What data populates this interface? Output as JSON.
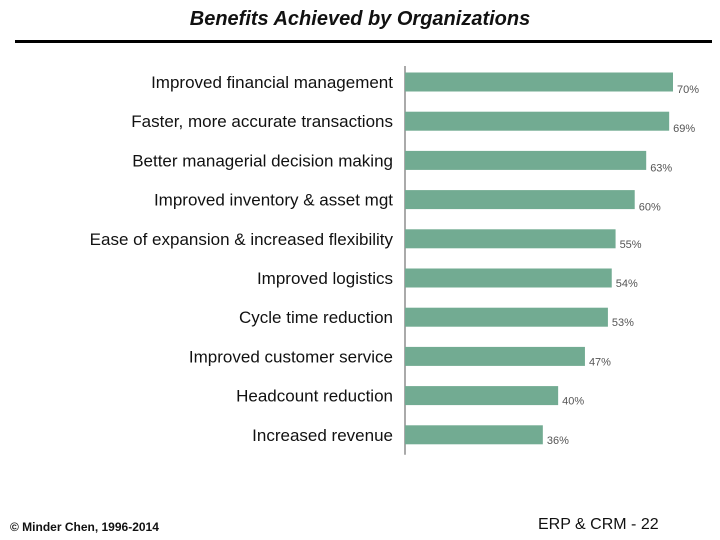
{
  "title": "Benefits Achieved by Organizations",
  "footer": {
    "copyright": "© Minder Chen, 1996-2014",
    "slide_ref": "ERP & CRM - 22"
  },
  "colors": {
    "bar": "#72ab92",
    "label": "#111111",
    "value": "#555555",
    "axis": "#555555"
  },
  "chart_data": {
    "type": "bar",
    "orientation": "horizontal",
    "title": "",
    "categories": [
      "Improved financial management",
      "Faster, more accurate transactions",
      "Better managerial decision making",
      "Improved inventory & asset mgt",
      "Ease of expansion & increased flexibility",
      "Improved logistics",
      "Cycle time reduction",
      "Improved customer service",
      "Headcount reduction",
      "Increased revenue"
    ],
    "values": [
      70,
      69,
      63,
      60,
      55,
      54,
      53,
      47,
      40,
      36
    ],
    "value_labels": [
      "70%",
      "69%",
      "63%",
      "60%",
      "55%",
      "54%",
      "53%",
      "47%",
      "40%",
      "36%"
    ],
    "xlim": [
      0,
      70
    ],
    "grid": false,
    "legend": "none"
  }
}
